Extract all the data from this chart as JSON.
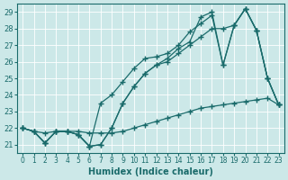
{
  "xlabel": "Humidex (Indice chaleur)",
  "background_color": "#cce8e8",
  "grid_color": "#aacccc",
  "line_color": "#1a6b6b",
  "xlim": [
    -0.5,
    23.5
  ],
  "ylim": [
    20.5,
    29.5
  ],
  "yticks": [
    21,
    22,
    23,
    24,
    25,
    26,
    27,
    28,
    29
  ],
  "xticks": [
    0,
    1,
    2,
    3,
    4,
    5,
    6,
    7,
    8,
    9,
    10,
    11,
    12,
    13,
    14,
    15,
    16,
    17,
    18,
    19,
    20,
    21,
    22,
    23
  ],
  "series": [
    {
      "x": [
        0,
        1,
        2,
        3,
        4,
        5,
        6,
        7,
        8,
        9,
        10,
        11,
        12,
        13,
        14,
        15,
        16,
        17,
        18,
        19,
        20,
        21,
        22,
        23
      ],
      "y": [
        22.0,
        21.8,
        21.7,
        21.8,
        21.8,
        21.8,
        21.7,
        21.7,
        21.7,
        21.8,
        22.0,
        22.2,
        22.4,
        22.6,
        22.8,
        23.0,
        23.2,
        23.3,
        23.4,
        23.5,
        23.6,
        23.7,
        23.8,
        23.4
      ]
    },
    {
      "x": [
        0,
        1,
        2,
        3,
        4,
        5,
        6,
        7,
        8,
        9,
        10,
        11,
        12,
        13,
        14,
        15,
        16,
        17,
        18,
        19,
        20,
        21,
        22,
        23
      ],
      "y": [
        22.0,
        21.8,
        21.1,
        21.8,
        21.8,
        21.6,
        20.9,
        21.0,
        22.0,
        23.5,
        24.5,
        25.3,
        25.8,
        26.0,
        26.5,
        27.0,
        27.5,
        28.0,
        28.0,
        28.2,
        29.2,
        27.9,
        25.0,
        23.4
      ]
    },
    {
      "x": [
        0,
        1,
        2,
        3,
        4,
        5,
        6,
        7,
        8,
        9,
        10,
        11,
        12,
        13,
        14,
        15,
        16,
        17,
        18,
        19,
        20,
        21,
        22,
        23
      ],
      "y": [
        22.0,
        21.8,
        21.1,
        21.8,
        21.8,
        21.6,
        20.9,
        23.5,
        24.0,
        24.8,
        25.6,
        26.2,
        26.3,
        26.5,
        27.0,
        27.8,
        28.3,
        28.8,
        25.8,
        28.2,
        29.2,
        27.9,
        25.0,
        23.4
      ]
    },
    {
      "x": [
        0,
        1,
        2,
        3,
        4,
        5,
        6,
        7,
        8,
        9,
        10,
        11,
        12,
        13,
        14,
        15,
        16,
        17,
        18,
        19,
        20,
        21,
        22,
        23
      ],
      "y": [
        22.0,
        21.8,
        21.1,
        21.8,
        21.8,
        21.6,
        20.9,
        21.0,
        22.0,
        23.5,
        24.5,
        25.3,
        25.8,
        26.2,
        26.8,
        27.2,
        28.7,
        29.0,
        25.8,
        28.2,
        29.2,
        27.9,
        25.0,
        23.4
      ]
    }
  ]
}
